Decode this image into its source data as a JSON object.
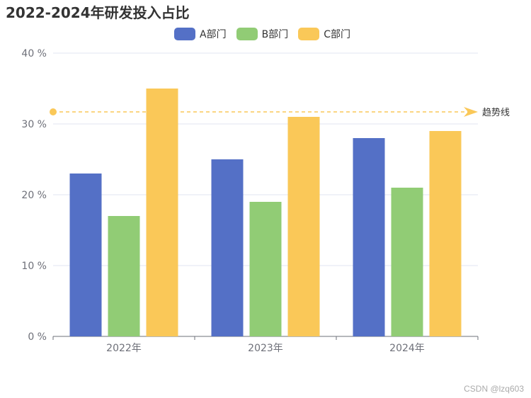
{
  "chart_data": {
    "type": "bar",
    "title": "2022-2024年研发投入占比",
    "categories": [
      "2022年",
      "2023年",
      "2024年"
    ],
    "series": [
      {
        "name": "A部门",
        "values": [
          23,
          25,
          28
        ],
        "color": "#5470c6"
      },
      {
        "name": "B部门",
        "values": [
          17,
          19,
          21
        ],
        "color": "#91cc75"
      },
      {
        "name": "C部门",
        "values": [
          35,
          31,
          29
        ],
        "color": "#fac858"
      }
    ],
    "ylim": [
      0,
      40
    ],
    "yticks": [
      0,
      10,
      20,
      30,
      40
    ],
    "ytick_labels": [
      "0 %",
      "10 %",
      "20 %",
      "30 %",
      "40 %"
    ],
    "grid": true,
    "legend_position": "top-center",
    "trendline": {
      "label": "趋势线",
      "value": 31.7,
      "color": "#fac858"
    }
  },
  "watermark": "CSDN @lzq603"
}
